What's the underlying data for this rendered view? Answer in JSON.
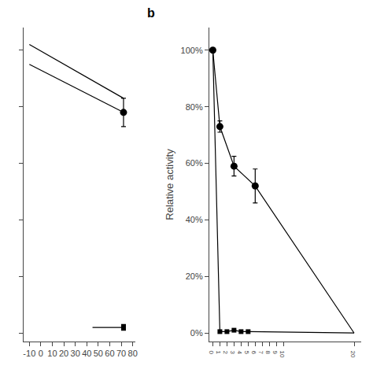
{
  "chart_data": [
    {
      "type": "line",
      "color": "#000000",
      "grid": false,
      "tick_labels": "x",
      "xlim": [
        -15,
        82
      ],
      "ylim": [
        -0.03,
        1.08
      ],
      "xticks": [
        -10,
        0,
        10,
        20,
        30,
        40,
        50,
        60,
        70,
        80
      ],
      "yticks": [
        0.0,
        0.2,
        0.4,
        0.6,
        0.8,
        1.0
      ],
      "series": [
        {
          "type": "line",
          "line_style": "solid",
          "x": [
            -10,
            72
          ],
          "values": [
            0.95,
            0.78
          ]
        },
        {
          "type": "line",
          "line_style": "solid",
          "x": [
            -10,
            72
          ],
          "values": [
            1.02,
            0.83
          ]
        },
        {
          "type": "scatter",
          "marker": "circle",
          "x": [
            72
          ],
          "values": [
            0.78
          ],
          "errors": [
            0.05
          ]
        },
        {
          "type": "line",
          "line_style": "solid",
          "x": [
            45,
            72
          ],
          "values": [
            0.02,
            0.02
          ]
        },
        {
          "type": "scatter",
          "marker": "square",
          "x": [
            72
          ],
          "values": [
            0.02
          ],
          "errors": [
            0.01
          ]
        }
      ]
    },
    {
      "type": "line",
      "color": "#000000",
      "grid": false,
      "y_label": "Relative activity",
      "annotations": [
        {
          "text": "b"
        }
      ],
      "xlim": [
        -0.5,
        21
      ],
      "ylim": [
        -0.03,
        1.08
      ],
      "xticks": [
        0,
        1,
        2,
        3,
        4,
        5,
        6,
        7,
        8,
        9,
        10,
        20
      ],
      "yticks": [
        {
          "value": 0.0,
          "label": "0%"
        },
        {
          "value": 0.2,
          "label": "20%"
        },
        {
          "value": 0.4,
          "label": "40%"
        },
        {
          "value": 0.6,
          "label": "60%"
        },
        {
          "value": 0.8,
          "label": "80%"
        },
        {
          "value": 1.0,
          "label": "100%"
        }
      ],
      "series": [
        {
          "type": "line",
          "line_style": "solid",
          "x": [
            0,
            1,
            3,
            6,
            20
          ],
          "values": [
            1.0,
            0.73,
            0.59,
            0.52,
            0.0
          ]
        },
        {
          "type": "line",
          "line_style": "solid",
          "x": [
            0,
            1,
            2,
            3,
            4,
            5,
            20
          ],
          "values": [
            1.0,
            0.005,
            0.005,
            0.01,
            0.005,
            0.005,
            0.0
          ]
        },
        {
          "type": "scatter",
          "marker": "square",
          "x": [
            1,
            2,
            3,
            4,
            5
          ],
          "values": [
            0.005,
            0.005,
            0.01,
            0.005,
            0.005
          ]
        },
        {
          "type": "scatter",
          "marker": "circle",
          "x": [
            0,
            1,
            3,
            6
          ],
          "values": [
            1.0,
            0.73,
            0.59,
            0.52
          ],
          "errors": [
            0.005,
            0.02,
            0.035,
            0.06
          ]
        }
      ]
    }
  ]
}
